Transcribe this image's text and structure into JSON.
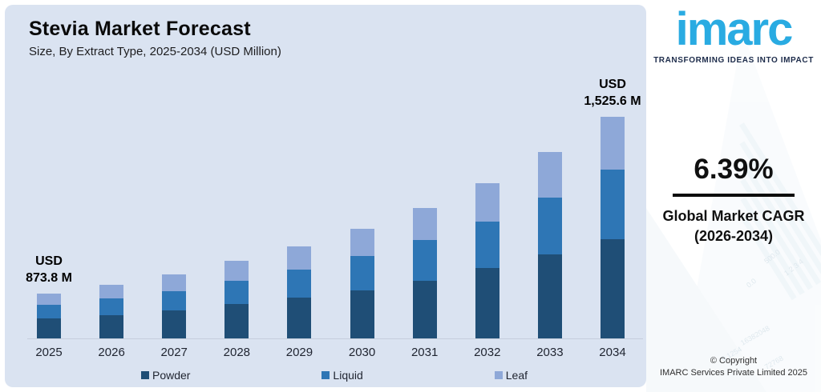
{
  "chart": {
    "title": "Stevia Market Forecast",
    "subtitle": "Size, By Extract Type, 2025-2034 (USD Million)",
    "legend": [
      {
        "label": "Powder",
        "color": "#1f4e76"
      },
      {
        "label": "Liquid",
        "color": "#2e76b5"
      },
      {
        "label": "Leaf",
        "color": "#8ea8d8"
      }
    ]
  },
  "chart_data": {
    "type": "bar",
    "stacked": true,
    "title": "Stevia Market Forecast",
    "subtitle": "Size, By Extract Type, 2025-2034 (USD Million)",
    "xlabel": "",
    "ylabel": "USD Million",
    "axes_visible": false,
    "grid": false,
    "legend_position": "bottom",
    "categories": [
      "2025",
      "2026",
      "2027",
      "2028",
      "2029",
      "2030",
      "2031",
      "2032",
      "2033",
      "2034"
    ],
    "series": [
      {
        "name": "Powder",
        "color": "#1f4e76",
        "values": [
          25,
          29,
          35,
          43,
          51,
          60,
          72,
          88,
          105,
          124
        ]
      },
      {
        "name": "Liquid",
        "color": "#2e76b5",
        "values": [
          17,
          21,
          24,
          29,
          35,
          43,
          51,
          58,
          71,
          87
        ]
      },
      {
        "name": "Leaf",
        "color": "#8ea8d8",
        "values": [
          14,
          17,
          21,
          25,
          29,
          34,
          40,
          48,
          57,
          66
        ]
      }
    ],
    "values_unit": "visual bar heights as drawn (chart is illustrative; only 2025 and 2034 totals are labeled)",
    "labeled_totals": {
      "2025": "USD 873.8 M",
      "2034": "USD 1,525.6 M"
    },
    "annotations": [
      {
        "index": 0,
        "lines": [
          "USD",
          "873.8 M"
        ]
      },
      {
        "index": 9,
        "lines": [
          "USD",
          "1,525.6 M"
        ]
      }
    ]
  },
  "side_panel": {
    "logo_text": "imarc",
    "tagline": "TRANSFORMING IDEAS INTO IMPACT",
    "cagr_value": "6.39%",
    "cagr_label_line1": "Global Market CAGR",
    "cagr_label_line2": "(2026-2034)",
    "copyright_line1": "© Copyright",
    "copyright_line2": "IMARC Services Private Limited 2025",
    "watermark_labels": [
      "500.0",
      "0.0",
      "1 2 3 4",
      "16382048",
      "72768",
      "0.1254"
    ]
  },
  "colors": {
    "card_background": "#dae3f1",
    "panel_background": "#ffffff",
    "logo_blue": "#29abe2",
    "tagline_navy": "#1c2b4a",
    "powder": "#1f4e76",
    "liquid": "#2e76b5",
    "leaf": "#8ea8d8"
  }
}
